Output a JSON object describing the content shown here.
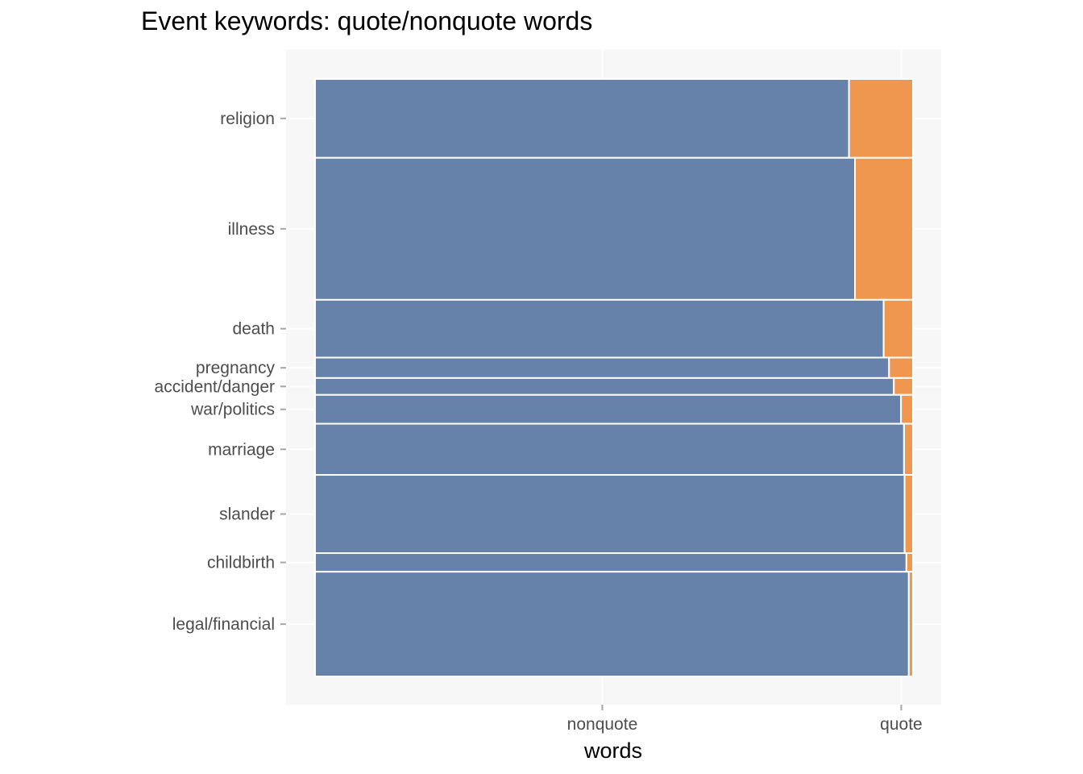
{
  "title": "Event keywords: quote/nonquote words",
  "colors": {
    "panel_bg": "#f7f7f7",
    "grid": "#ffffff",
    "nonquote": "#6682aa",
    "quote": "#ef974e",
    "tick_text": "#4d4d4d",
    "tick_mark": "#a6a6a6"
  },
  "chart_data": {
    "type": "bar",
    "subtype": "mosaic (100% stacked, variable row height)",
    "title": "Event keywords: quote/nonquote words",
    "xlabel": "words",
    "ylabel": "",
    "x_categories": [
      "nonquote",
      "quote"
    ],
    "categories": [
      "religion",
      "illness",
      "death",
      "pregnancy",
      "accident/danger",
      "war/politics",
      "marriage",
      "slander",
      "childbirth",
      "legal/financial"
    ],
    "row_share": [
      0.131,
      0.236,
      0.096,
      0.034,
      0.028,
      0.048,
      0.085,
      0.13,
      0.031,
      0.174
    ],
    "series": [
      {
        "name": "nonquote",
        "values": [
          0.893,
          0.903,
          0.951,
          0.96,
          0.968,
          0.98,
          0.985,
          0.986,
          0.989,
          0.993
        ]
      },
      {
        "name": "quote",
        "values": [
          0.107,
          0.097,
          0.049,
          0.04,
          0.032,
          0.02,
          0.015,
          0.014,
          0.011,
          0.007
        ]
      }
    ],
    "grid": true,
    "legend": "none"
  }
}
